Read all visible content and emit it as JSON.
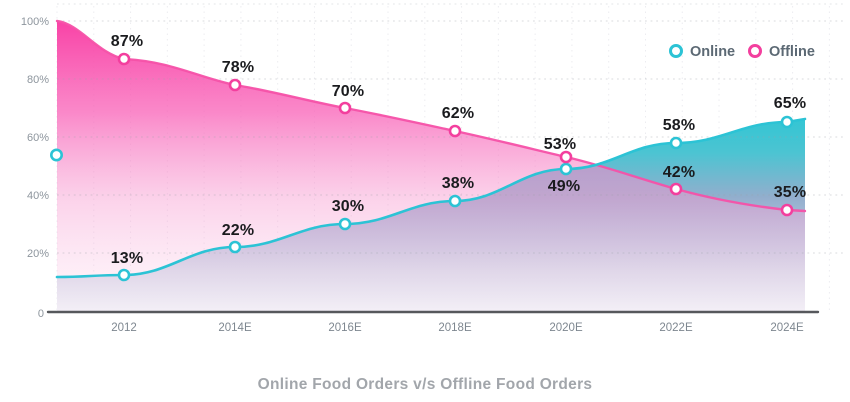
{
  "chart_data": {
    "type": "area",
    "title": "Online Food Orders v/s Offline Food Orders",
    "categories": [
      "2012",
      "2014E",
      "2016E",
      "2018E",
      "2020E",
      "2022E",
      "2024E"
    ],
    "series": [
      {
        "name": "Online",
        "color": "#2cc3d5",
        "values": [
          13,
          22,
          30,
          38,
          49,
          58,
          65
        ],
        "point_labels": [
          "13%",
          "22%",
          "30%",
          "38%",
          "49%",
          "58%",
          "65%"
        ]
      },
      {
        "name": "Offline",
        "color": "#f33f9e",
        "values": [
          87,
          78,
          70,
          62,
          53,
          42,
          35
        ],
        "point_labels": [
          "87%",
          "78%",
          "70%",
          "62%",
          "53%",
          "42%",
          "35%"
        ]
      }
    ],
    "y_ticks": [
      "100%",
      "80%",
      "60%",
      "40%",
      "20%",
      "0"
    ],
    "ylim": [
      0,
      100
    ],
    "xlabel": "",
    "ylabel": "",
    "grid": "dotted",
    "legend_position": "top-right"
  }
}
